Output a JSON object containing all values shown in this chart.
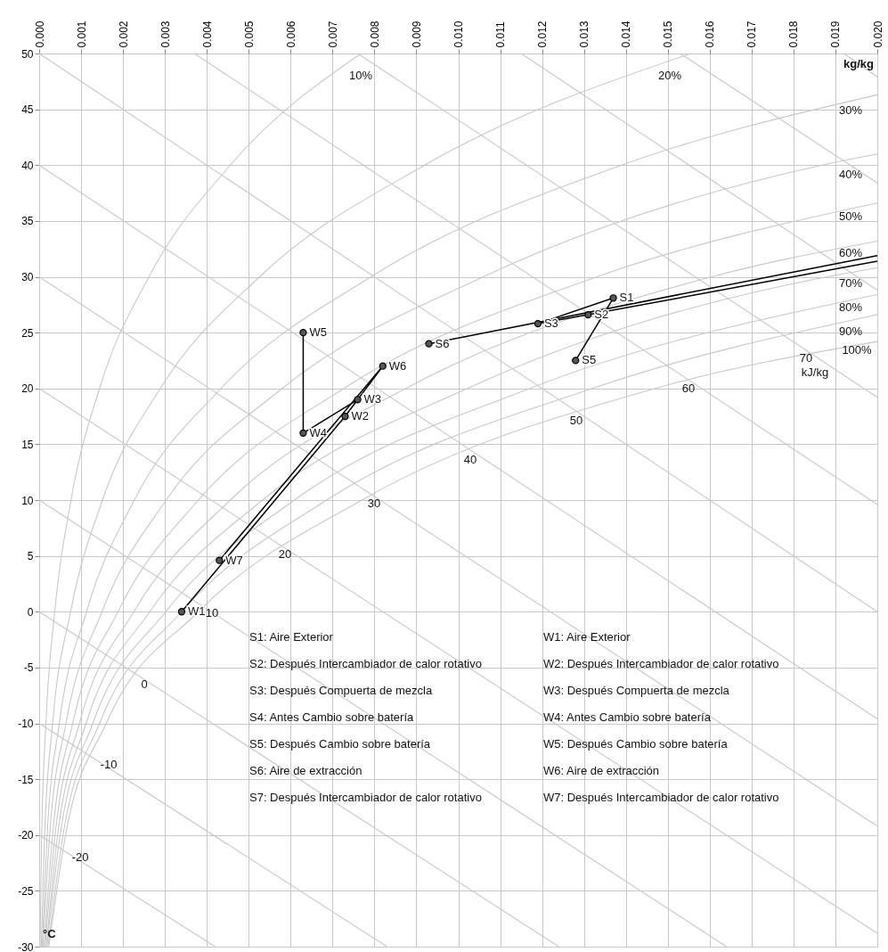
{
  "chart_data": {
    "type": "line",
    "xlabel": "kg/kg",
    "ylabel": "°C",
    "xlim": [
      0,
      0.02
    ],
    "ylim": [
      -30,
      50
    ],
    "xticks": [
      {
        "value": 0,
        "label": "0.000"
      },
      0.001,
      0.002,
      0.003,
      0.004,
      0.005,
      0.006,
      0.007,
      0.008,
      0.009,
      {
        "value": 0.01,
        "label": "0.010"
      },
      0.011,
      0.012,
      0.013,
      0.014,
      0.015,
      0.016,
      0.017,
      0.018,
      0.019,
      {
        "value": 0.02,
        "label": "0.020"
      }
    ],
    "yticks": [
      -30,
      -25,
      -20,
      -15,
      -10,
      -5,
      0,
      5,
      10,
      15,
      20,
      25,
      30,
      35,
      40,
      45,
      50
    ],
    "grid": true,
    "series": [
      {
        "color": "#c8c8c8",
        "x": [
          2e-05,
          6e-05,
          0.00016,
          0.00037,
          0.00076,
          0.00144,
          0.00262,
          0.00456,
          0.00768
        ],
        "values": [
          -30,
          -20,
          -10,
          0,
          10,
          20,
          30,
          40,
          50
        ]
      },
      {
        "color": "#c8c8c8",
        "x": [
          5e-05,
          0.00013,
          0.00032,
          0.00075,
          0.00151,
          0.00289,
          0.00526,
          0.0092,
          0.01555
        ],
        "values": [
          -30,
          -20,
          -10,
          0,
          10,
          20,
          30,
          40,
          50
        ]
      },
      {
        "color": "#c8c8c8",
        "x": [
          7e-05,
          0.00019,
          0.00048,
          0.00113,
          0.00227,
          0.00434,
          0.00792,
          0.0139,
          0.02
        ],
        "values": [
          -30,
          -20,
          -10,
          0,
          10,
          20,
          30,
          40,
          46.3
        ]
      },
      {
        "color": "#c8c8c8",
        "x": [
          9e-05,
          0.00025,
          0.00064,
          0.0015,
          0.00303,
          0.0058,
          0.0106,
          0.01868,
          0.02
        ],
        "values": [
          -30,
          -20,
          -10,
          0,
          10,
          20,
          30,
          40,
          41
        ]
      },
      {
        "color": "#c8c8c8",
        "x": [
          0.00012,
          0.00032,
          0.0008,
          0.00188,
          0.0038,
          0.00727,
          0.01331,
          0.02
        ],
        "values": [
          -30,
          -20,
          -10,
          0,
          10,
          20,
          30,
          36.6
        ]
      },
      {
        "color": "#c8c8c8",
        "x": [
          0.00014,
          0.00038,
          0.00096,
          0.00226,
          0.00456,
          0.00875,
          0.01605,
          0.02
        ],
        "values": [
          -30,
          -20,
          -10,
          0,
          10,
          20,
          30,
          33.2
        ]
      },
      {
        "color": "#c8c8c8",
        "x": [
          0.00017,
          0.00044,
          0.00112,
          0.00264,
          0.00533,
          0.01022,
          0.0188,
          0.02
        ],
        "values": [
          -30,
          -20,
          -10,
          0,
          10,
          20,
          30,
          30.8
        ]
      },
      {
        "color": "#c8c8c8",
        "x": [
          0.00018,
          0.0005,
          0.00128,
          0.00302,
          0.00609,
          0.01171,
          0.02
        ],
        "values": [
          -30,
          -20,
          -10,
          0,
          10,
          20,
          28.4
        ]
      },
      {
        "color": "#c8c8c8",
        "x": [
          0.00021,
          0.00057,
          0.00144,
          0.0034,
          0.00686,
          0.0132,
          0.02
        ],
        "values": [
          -30,
          -20,
          -10,
          0,
          10,
          20,
          26.6
        ]
      },
      {
        "color": "#c8c8c8",
        "x": [
          0.00023,
          0.00063,
          0.0016,
          0.0038,
          0.0077,
          0.0147,
          0.02
        ],
        "values": [
          -30,
          -20,
          -10,
          0,
          10,
          20,
          24.2
        ]
      },
      {
        "color": "#c8c8c8",
        "x": [
          0,
          0.0042
        ],
        "values": [
          -20,
          -30
        ]
      },
      {
        "color": "#c8c8c8",
        "x": [
          0,
          0.0083
        ],
        "values": [
          -10,
          -30
        ]
      },
      {
        "color": "#c8c8c8",
        "x": [
          0,
          0.0124
        ],
        "values": [
          0,
          -30
        ]
      },
      {
        "color": "#c8c8c8",
        "x": [
          0,
          0.0164
        ],
        "values": [
          10,
          -30
        ]
      },
      {
        "color": "#c8c8c8",
        "x": [
          0,
          0.02
        ],
        "values": [
          20,
          -28.8
        ]
      },
      {
        "color": "#c8c8c8",
        "x": [
          0,
          0.02
        ],
        "values": [
          30,
          -19.2
        ]
      },
      {
        "color": "#c8c8c8",
        "x": [
          0,
          0.02
        ],
        "values": [
          40,
          -9.6
        ]
      },
      {
        "color": "#c8c8c8",
        "x": [
          0,
          0.02
        ],
        "values": [
          50,
          0
        ]
      },
      {
        "color": "#c8c8c8",
        "x": [
          0.0037,
          0.02
        ],
        "values": [
          50,
          9.6
        ]
      },
      {
        "color": "#c8c8c8",
        "x": [
          0.0076,
          0.02
        ],
        "values": [
          50,
          19.2
        ]
      },
      {
        "color": "#c8c8c8",
        "x": [
          0.0115,
          0.02
        ],
        "values": [
          50,
          28.8
        ]
      },
      {
        "color": "#c8c8c8",
        "x": [
          0.0153,
          0.02
        ],
        "values": [
          50,
          38.4
        ]
      },
      {
        "color": "#c8c8c8",
        "x": [
          0.0192,
          0.02
        ],
        "values": [
          50,
          47.9
        ]
      },
      {
        "color": "#000000",
        "x": [
          0.0034,
          0.0073,
          0.0076,
          0.0063,
          0.0063
        ],
        "values": [
          0,
          17.5,
          19,
          16,
          25
        ]
      },
      {
        "color": "#000000",
        "x": [
          0.0082,
          0.0076
        ],
        "values": [
          22,
          19
        ]
      },
      {
        "color": "#000000",
        "x": [
          0.0082,
          0.0043
        ],
        "values": [
          22,
          4.6
        ]
      },
      {
        "color": "#000000",
        "x": [
          0.0119,
          0.0137
        ],
        "values": [
          25.8,
          28.1
        ]
      },
      {
        "color": "#000000",
        "x": [
          0.0119,
          0.0131
        ],
        "values": [
          25.8,
          26.6
        ]
      },
      {
        "color": "#000000",
        "x": [
          0.0137,
          0.0128
        ],
        "values": [
          28.1,
          22.5
        ]
      },
      {
        "color": "#000000",
        "x": [
          0.0093,
          0.02
        ],
        "values": [
          24,
          31.9
        ]
      },
      {
        "color": "#000000",
        "x": [
          0.0131,
          0.02
        ],
        "values": [
          26.6,
          31.4
        ]
      },
      {
        "type": "scatter",
        "marker": "circle",
        "color": "#555555",
        "x": [
          0.0034,
          0.0073,
          0.0076,
          0.0063,
          0.0063,
          0.0082,
          0.0043,
          0.0137,
          0.0131,
          0.0119,
          0.0128,
          0.0093
        ],
        "values": [
          0,
          17.5,
          19,
          16,
          25,
          22,
          4.6,
          28.1,
          26.6,
          25.8,
          22.5,
          24
        ]
      }
    ],
    "annotations": [
      {
        "text": "W1",
        "x": 0.0034,
        "y": 0
      },
      {
        "text": "W2",
        "x": 0.0073,
        "y": 17.5
      },
      {
        "text": "W3",
        "x": 0.0076,
        "y": 19
      },
      {
        "text": "W4",
        "x": 0.0063,
        "y": 16
      },
      {
        "text": "W5",
        "x": 0.0063,
        "y": 25
      },
      {
        "text": "W6",
        "x": 0.0082,
        "y": 22
      },
      {
        "text": "W7",
        "x": 0.0043,
        "y": 4.6
      },
      {
        "text": "S1",
        "x": 0.0137,
        "y": 28.1
      },
      {
        "text": "S2",
        "x": 0.0131,
        "y": 26.6
      },
      {
        "text": "S3",
        "x": 0.0119,
        "y": 25.8
      },
      {
        "text": "S5",
        "x": 0.0128,
        "y": 22.5
      },
      {
        "text": "S6",
        "x": 0.0093,
        "y": 24
      },
      "10%",
      "20%",
      "30%",
      "40%",
      "50%",
      "60%",
      "70%",
      "80%",
      "90%",
      "100%",
      "70",
      "kJ/kg",
      "60",
      "50",
      "40",
      "30",
      "20",
      "10",
      "0",
      "-10",
      "-20",
      "S1: Aire Exterior",
      "S2: Después Intercambiador de calor rotativo",
      "S3: Después Compuerta de mezcla",
      "S4: Antes Cambio sobre batería",
      "S5: Después Cambio sobre batería",
      "S6: Aire de extracción",
      "S7: Después Intercambiador de calor rotativo",
      "W1: Aire Exterior",
      "W2: Después Intercambiador de calor rotativo",
      "W3: Después Compuerta de mezcla",
      "W4: Antes Cambio sobre batería",
      "W5: Después Cambio sobre batería",
      "W6: Aire de extracción",
      "W7: Después Intercambiador de calor rotativo"
    ]
  }
}
